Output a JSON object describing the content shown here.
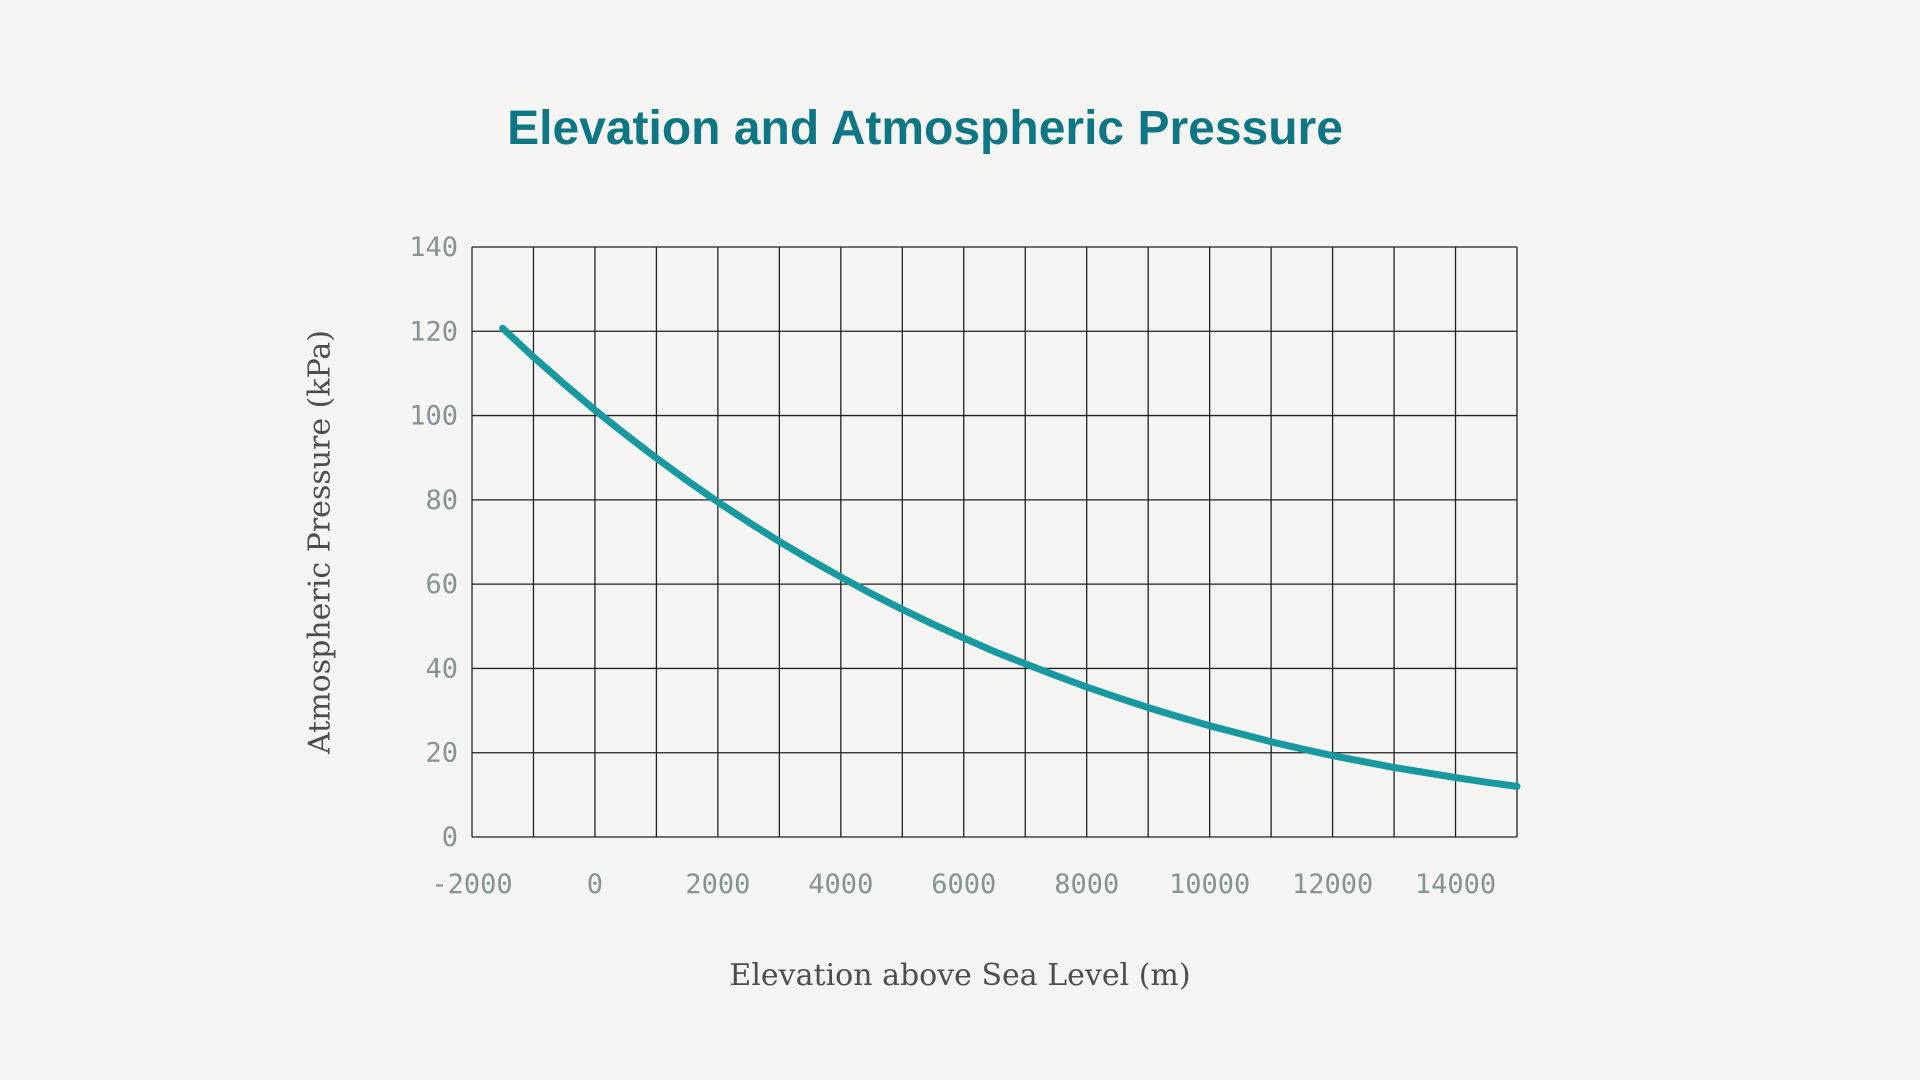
{
  "page": {
    "background_color": "#f4f4f2"
  },
  "chart_data": {
    "type": "line",
    "title": "Elevation and Atmospheric Pressure",
    "xlabel": "Elevation above Sea Level (m)",
    "ylabel": "Atmospheric Pressure (kPa)",
    "xlim": [
      -2000,
      15000
    ],
    "ylim": [
      0,
      140
    ],
    "x_tick_labels": [
      -2000,
      0,
      2000,
      4000,
      6000,
      8000,
      10000,
      12000,
      14000
    ],
    "x_gridline_step": 1000,
    "y_tick_labels": [
      0,
      20,
      40,
      60,
      80,
      100,
      120,
      140
    ],
    "y_gridline_step": 20,
    "grid": "on",
    "legend": "none",
    "series": [
      {
        "name": "Atmospheric Pressure",
        "x": [
          -1500,
          -1000,
          -500,
          0,
          500,
          1000,
          1500,
          2000,
          2500,
          3000,
          3500,
          4000,
          4500,
          5000,
          5500,
          6000,
          6500,
          7000,
          7500,
          8000,
          8500,
          9000,
          9500,
          10000,
          10500,
          11000,
          11500,
          12000,
          12500,
          13000,
          13500,
          14000,
          14500,
          15000
        ],
        "y": [
          120.7,
          113.9,
          107.5,
          101.3,
          95.5,
          89.9,
          84.6,
          79.5,
          74.7,
          70.1,
          65.8,
          61.7,
          57.7,
          54.0,
          50.5,
          47.2,
          44.0,
          41.1,
          38.3,
          35.6,
          33.1,
          30.7,
          28.5,
          26.4,
          24.5,
          22.6,
          20.9,
          19.3,
          17.9,
          16.5,
          15.3,
          14.1,
          13.0,
          12.0
        ]
      }
    ],
    "colors": {
      "line": "#18999f",
      "title": "#0f7684",
      "tick_labels": "#869294",
      "axis_titles": "#4a4f4b",
      "gridlines": "#212121",
      "background": "#f4f4f2"
    }
  }
}
